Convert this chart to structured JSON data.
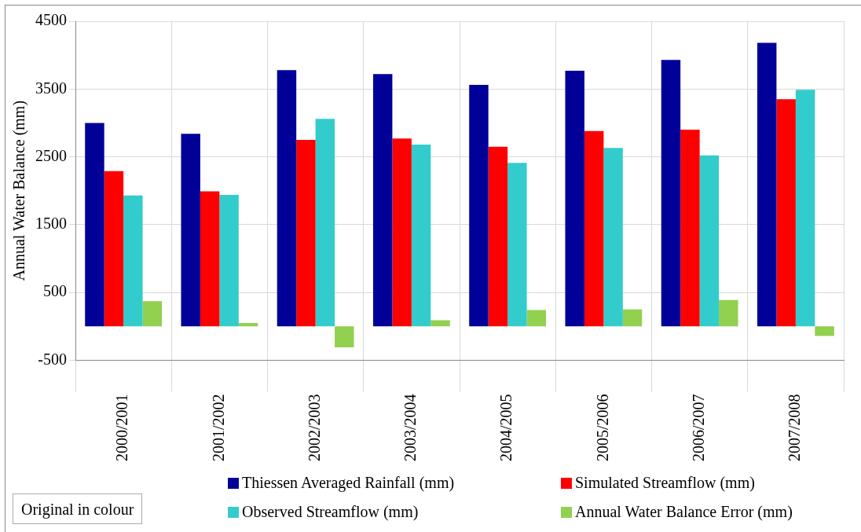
{
  "chart_data": {
    "type": "bar",
    "ylabel": "Annual Water Balance (mm)",
    "categories": [
      "2000/2001",
      "2001/2002",
      "2002/2003",
      "2003/2004",
      "2004/2005",
      "2005/2006",
      "2006/2007",
      "2007/2008"
    ],
    "series": [
      {
        "name": "Thiessen Averaged Rainfall (mm)",
        "color": "#000099",
        "values": [
          3000,
          2840,
          3780,
          3720,
          3560,
          3770,
          3930,
          4180
        ]
      },
      {
        "name": "Simulated Streamflow (mm)",
        "color": "#ff0000",
        "values": [
          2290,
          1990,
          2750,
          2770,
          2650,
          2880,
          2900,
          3350
        ]
      },
      {
        "name": "Observed Streamflow (mm)",
        "color": "#33cccc",
        "values": [
          1930,
          1940,
          3060,
          2680,
          2410,
          2630,
          2520,
          3490
        ]
      },
      {
        "name": "Annual Water Balance Error (mm)",
        "color": "#92d050",
        "values": [
          370,
          50,
          -310,
          90,
          240,
          250,
          390,
          -140
        ]
      }
    ],
    "ylim": [
      -500,
      4500
    ],
    "yticks": [
      -500,
      500,
      1500,
      2500,
      3500,
      4500
    ],
    "grid": true,
    "legend": "bottom",
    "annotations": [
      "Original in colour"
    ]
  }
}
